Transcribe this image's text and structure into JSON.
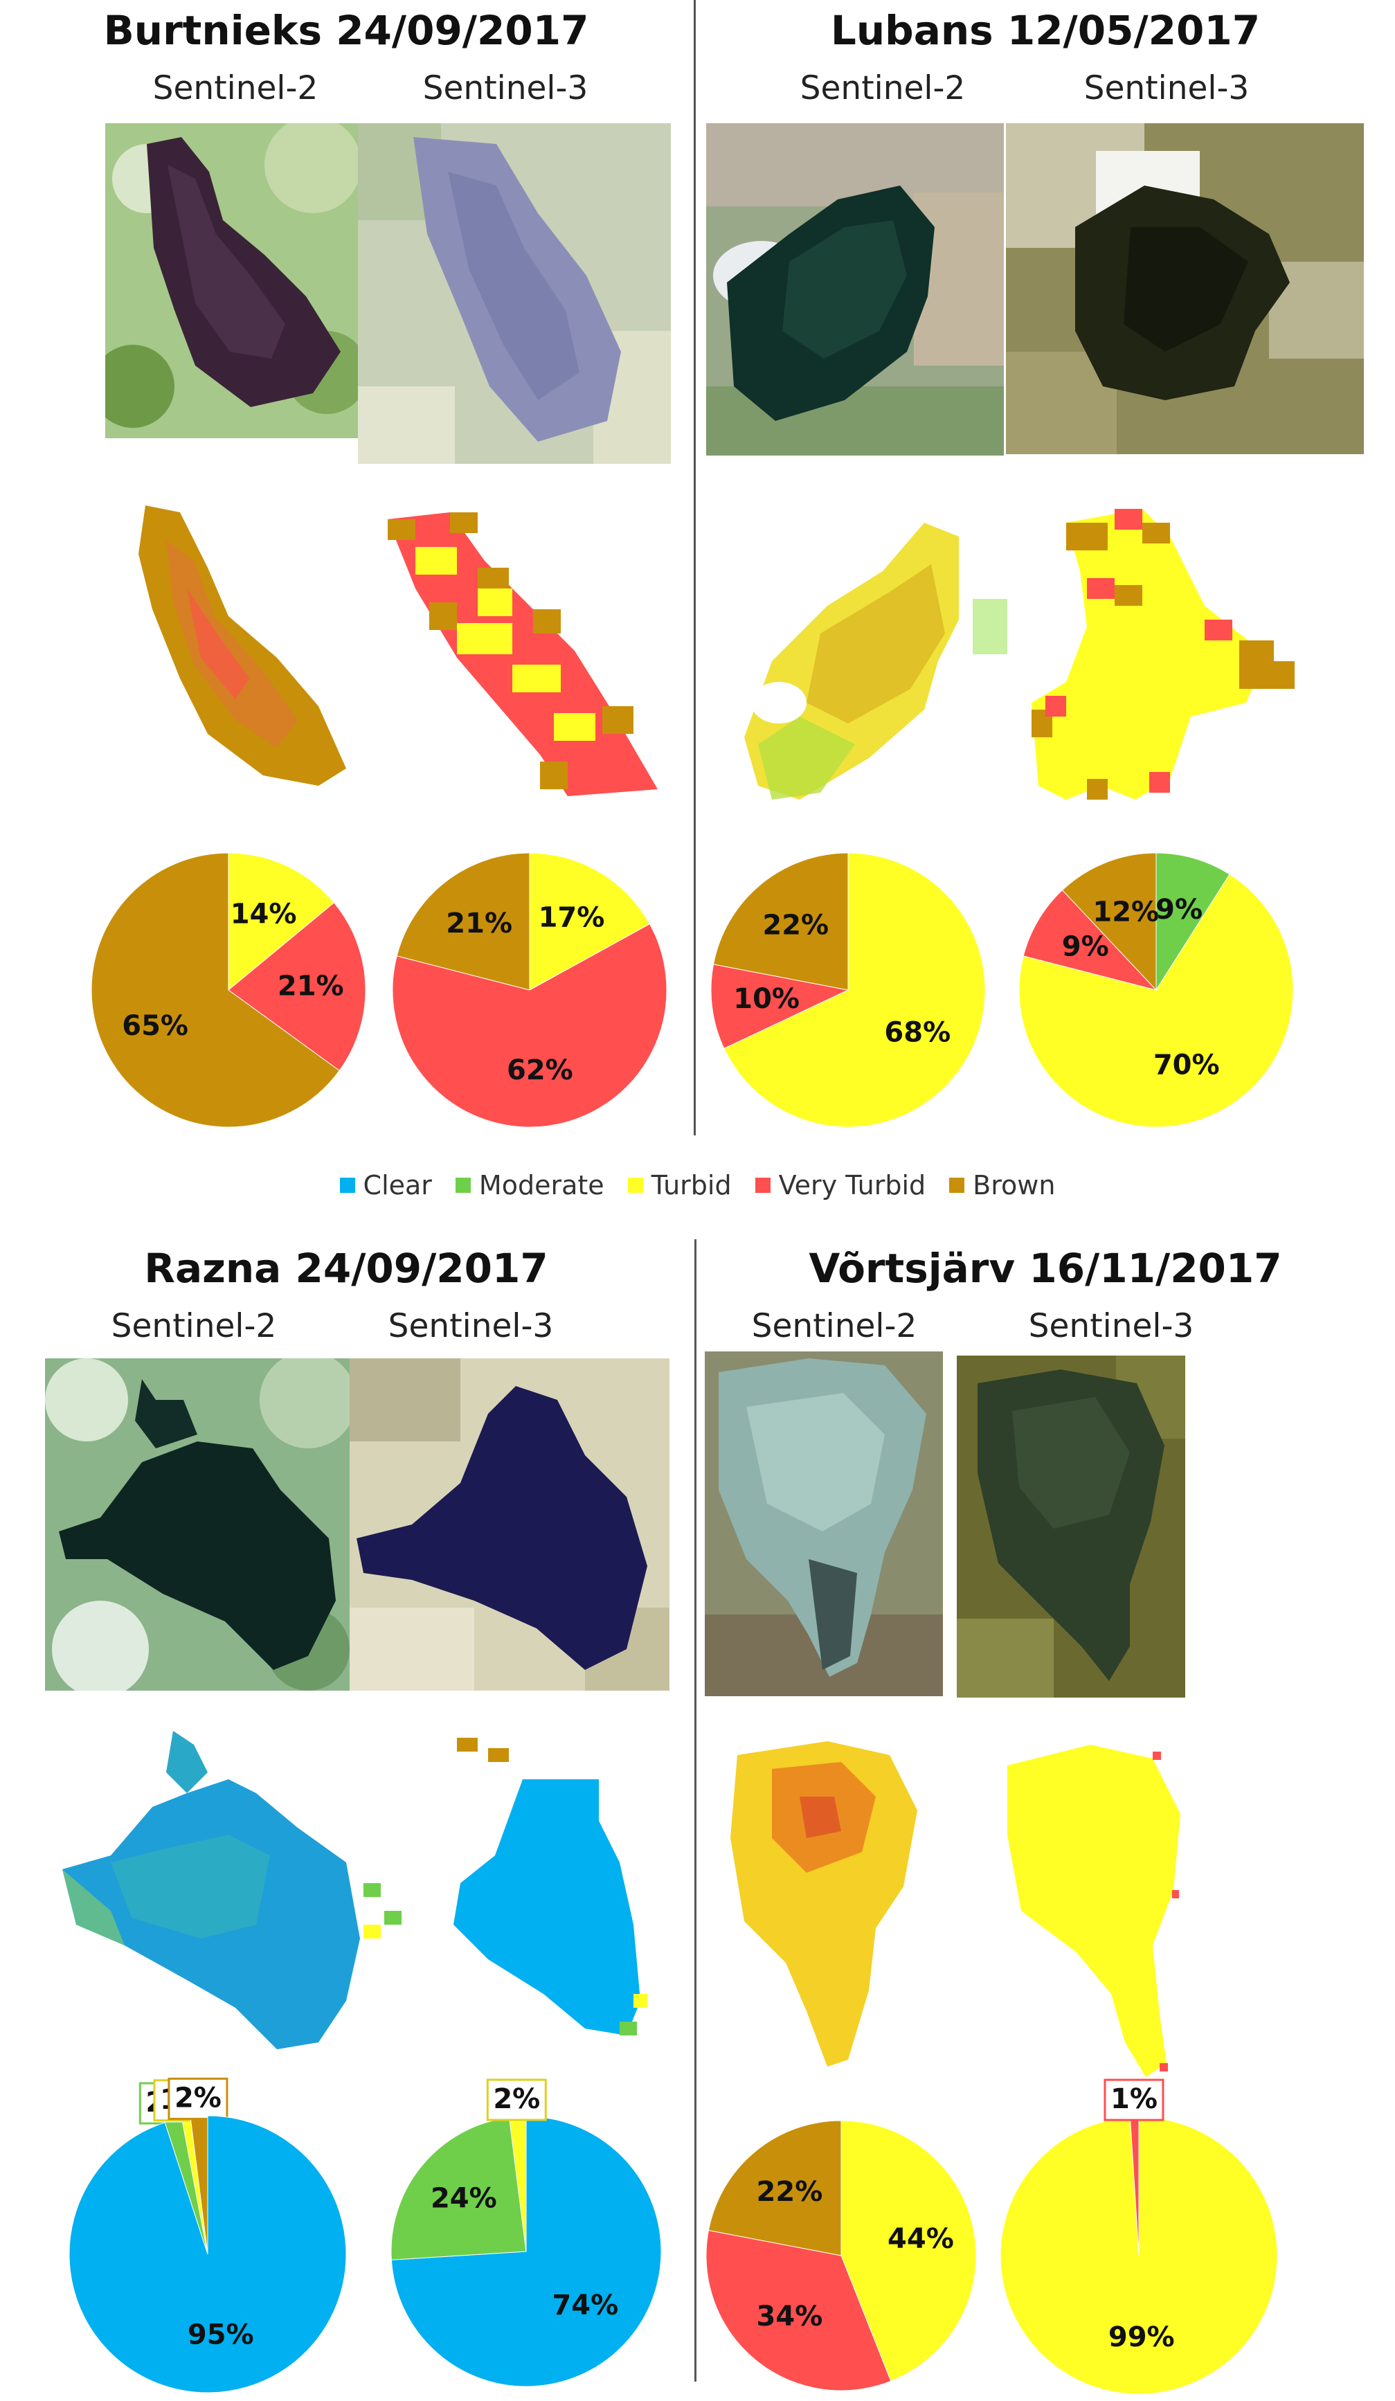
{
  "colors": {
    "Clear": "#00b0f0",
    "Moderate": "#6fcf4a",
    "Turbid": "#ffff26",
    "Very Turbid": "#ff4f4f",
    "Brown": "#c8900a"
  },
  "legend": [
    {
      "label": "Clear",
      "color": "#00b0f0"
    },
    {
      "label": "Moderate",
      "color": "#6fcf4a"
    },
    {
      "label": "Turbid",
      "color": "#ffff26"
    },
    {
      "label": "Very Turbid",
      "color": "#ff4f4f"
    },
    {
      "label": "Brown",
      "color": "#c8900a"
    }
  ],
  "sensors": {
    "s2": "Sentinel-2",
    "s3": "Sentinel-3"
  },
  "quads": [
    {
      "title": "Burtnieks 24/09/2017"
    },
    {
      "title": "Lubans 12/05/2017"
    },
    {
      "title": "Razna 24/09/2017"
    },
    {
      "title": "Võrtsjärv 16/11/2017"
    }
  ],
  "chart_data": [
    {
      "type": "pie",
      "lake": "Burtnieks 24/09/2017",
      "sensor": "Sentinel-2",
      "slices": [
        {
          "name": "Turbid",
          "value": 14,
          "label": "14%"
        },
        {
          "name": "Very Turbid",
          "value": 21,
          "label": "21%"
        },
        {
          "name": "Brown",
          "value": 65,
          "label": "65%"
        }
      ]
    },
    {
      "type": "pie",
      "lake": "Burtnieks 24/09/2017",
      "sensor": "Sentinel-3",
      "slices": [
        {
          "name": "Turbid",
          "value": 17,
          "label": "17%"
        },
        {
          "name": "Very Turbid",
          "value": 62,
          "label": "62%"
        },
        {
          "name": "Brown",
          "value": 21,
          "label": "21%"
        }
      ]
    },
    {
      "type": "pie",
      "lake": "Lubans 12/05/2017",
      "sensor": "Sentinel-2",
      "slices": [
        {
          "name": "Turbid",
          "value": 68,
          "label": "68%"
        },
        {
          "name": "Very Turbid",
          "value": 10,
          "label": "10%"
        },
        {
          "name": "Brown",
          "value": 22,
          "label": "22%"
        }
      ]
    },
    {
      "type": "pie",
      "lake": "Lubans 12/05/2017",
      "sensor": "Sentinel-3",
      "slices": [
        {
          "name": "Moderate",
          "value": 9,
          "label": "9%"
        },
        {
          "name": "Turbid",
          "value": 70,
          "label": "70%"
        },
        {
          "name": "Very Turbid",
          "value": 9,
          "label": "9%"
        },
        {
          "name": "Brown",
          "value": 12,
          "label": "12%"
        }
      ]
    },
    {
      "type": "pie",
      "lake": "Razna 24/09/2017",
      "sensor": "Sentinel-2",
      "slices": [
        {
          "name": "Clear",
          "value": 95,
          "label": "95%"
        },
        {
          "name": "Moderate",
          "value": 2,
          "label": "2%"
        },
        {
          "name": "Turbid",
          "value": 1,
          "label": "1%"
        },
        {
          "name": "Brown",
          "value": 2,
          "label": "2%"
        }
      ]
    },
    {
      "type": "pie",
      "lake": "Razna 24/09/2017",
      "sensor": "Sentinel-3",
      "slices": [
        {
          "name": "Clear",
          "value": 74,
          "label": "74%"
        },
        {
          "name": "Moderate",
          "value": 24,
          "label": "24%"
        },
        {
          "name": "Turbid",
          "value": 2,
          "label": "2%"
        }
      ]
    },
    {
      "type": "pie",
      "lake": "Võrtsjärv 16/11/2017",
      "sensor": "Sentinel-2",
      "slices": [
        {
          "name": "Turbid",
          "value": 44,
          "label": "44%"
        },
        {
          "name": "Very Turbid",
          "value": 34,
          "label": "34%"
        },
        {
          "name": "Brown",
          "value": 22,
          "label": "22%"
        }
      ]
    },
    {
      "type": "pie",
      "lake": "Võrtsjärv 16/11/2017",
      "sensor": "Sentinel-3",
      "slices": [
        {
          "name": "Turbid",
          "value": 99,
          "label": "99%"
        },
        {
          "name": "Very Turbid",
          "value": 1,
          "label": "1%"
        }
      ]
    }
  ]
}
